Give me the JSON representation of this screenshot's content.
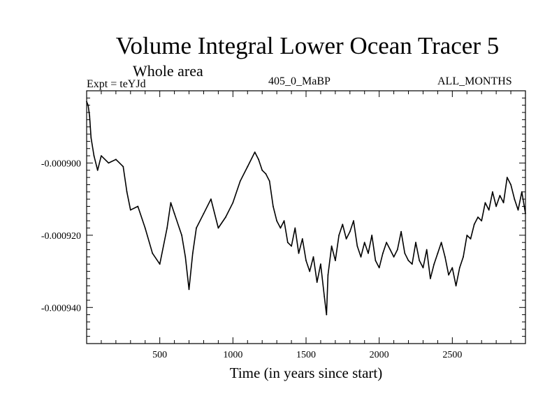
{
  "chart_data": {
    "type": "line",
    "title": "Volume Integral Lower Ocean Tracer 5",
    "subtitle": "Whole area",
    "expt_label": "Expt = teYJd",
    "run_label": "405_0_MaBP",
    "months_label": "ALL_MONTHS",
    "xlabel": "Time (in years since start)",
    "ylabel": "",
    "xlim": [
      0,
      3000
    ],
    "ylim": [
      -0.00095,
      -0.00088
    ],
    "x_ticks": [
      500,
      1000,
      1500,
      2000,
      2500
    ],
    "x_tick_labels": [
      "500",
      "1000",
      "1500",
      "2000",
      "2500"
    ],
    "y_ticks": [
      -0.0009,
      -0.00092,
      -0.00094
    ],
    "y_tick_labels": [
      "-0.000900",
      "-0.000920",
      "-0.000940"
    ],
    "line_color": "#000000",
    "series": [
      {
        "name": "Lower Ocean Tracer 5",
        "x": [
          0,
          10,
          20,
          30,
          50,
          75,
          100,
          150,
          200,
          250,
          275,
          300,
          350,
          400,
          450,
          500,
          550,
          575,
          600,
          650,
          675,
          700,
          725,
          750,
          800,
          850,
          900,
          950,
          1000,
          1050,
          1100,
          1150,
          1175,
          1200,
          1225,
          1250,
          1275,
          1300,
          1325,
          1350,
          1375,
          1400,
          1425,
          1450,
          1475,
          1500,
          1525,
          1550,
          1575,
          1600,
          1625,
          1640,
          1650,
          1675,
          1700,
          1725,
          1750,
          1775,
          1800,
          1825,
          1850,
          1875,
          1900,
          1925,
          1950,
          1975,
          2000,
          2025,
          2050,
          2075,
          2100,
          2125,
          2150,
          2175,
          2200,
          2225,
          2250,
          2275,
          2300,
          2325,
          2350,
          2375,
          2400,
          2425,
          2450,
          2475,
          2500,
          2525,
          2550,
          2575,
          2600,
          2625,
          2650,
          2675,
          2700,
          2725,
          2750,
          2775,
          2800,
          2825,
          2850,
          2875,
          2900,
          2925,
          2950,
          2975,
          3000
        ],
        "y": [
          -0.000883,
          -0.000884,
          -0.000887,
          -0.000893,
          -0.000898,
          -0.000902,
          -0.000898,
          -0.0009,
          -0.000899,
          -0.000901,
          -0.000908,
          -0.000913,
          -0.000912,
          -0.000918,
          -0.000925,
          -0.000928,
          -0.000918,
          -0.000911,
          -0.000914,
          -0.00092,
          -0.000926,
          -0.000935,
          -0.000925,
          -0.000918,
          -0.000914,
          -0.00091,
          -0.000918,
          -0.000915,
          -0.000911,
          -0.000905,
          -0.000901,
          -0.000897,
          -0.000899,
          -0.000902,
          -0.000903,
          -0.000905,
          -0.000912,
          -0.000916,
          -0.000918,
          -0.000916,
          -0.000922,
          -0.000923,
          -0.000918,
          -0.000925,
          -0.000921,
          -0.000927,
          -0.00093,
          -0.000926,
          -0.000933,
          -0.000928,
          -0.000937,
          -0.000942,
          -0.000931,
          -0.000923,
          -0.000927,
          -0.00092,
          -0.000917,
          -0.000921,
          -0.000919,
          -0.000916,
          -0.000923,
          -0.000926,
          -0.000922,
          -0.000925,
          -0.00092,
          -0.000927,
          -0.000929,
          -0.000925,
          -0.000922,
          -0.000924,
          -0.000926,
          -0.000924,
          -0.000919,
          -0.000925,
          -0.000927,
          -0.000928,
          -0.000922,
          -0.000927,
          -0.000929,
          -0.000924,
          -0.000932,
          -0.000928,
          -0.000925,
          -0.000922,
          -0.000926,
          -0.000931,
          -0.000929,
          -0.000934,
          -0.000929,
          -0.000926,
          -0.00092,
          -0.000921,
          -0.000917,
          -0.000915,
          -0.000916,
          -0.000911,
          -0.000913,
          -0.000908,
          -0.000912,
          -0.000909,
          -0.000911,
          -0.000904,
          -0.000906,
          -0.00091,
          -0.000913,
          -0.000908,
          -0.000914
        ]
      }
    ]
  }
}
